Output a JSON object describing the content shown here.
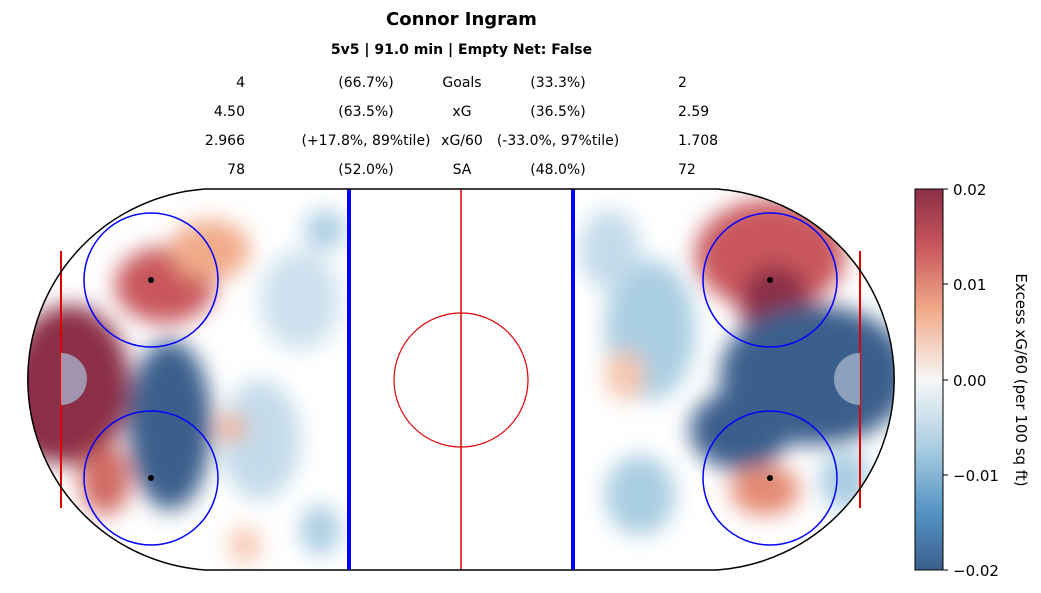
{
  "title": "Connor Ingram",
  "subtitle": "5v5 | 91.0 min | Empty Net: False",
  "stats": [
    {
      "left": "4",
      "left_pct": "(66.7%)",
      "label": "Goals",
      "right_pct": "(33.3%)",
      "right": "2"
    },
    {
      "left": "4.50",
      "left_pct": "(63.5%)",
      "label": "xG",
      "right_pct": "(36.5%)",
      "right": "2.59"
    },
    {
      "left": "2.966",
      "left_pct": "(+17.8%, 89%tile)",
      "label": "xG/60",
      "right_pct": "(-33.0%, 97%tile)",
      "right": "1.708"
    },
    {
      "left": "78",
      "left_pct": "(52.0%)",
      "label": "SA",
      "right_pct": "(48.0%)",
      "right": "72"
    }
  ],
  "colorbar": {
    "label": "Excess xG/60 (per 100 sq ft)",
    "ticks": [
      "0.02",
      "0.01",
      "0.00",
      "−0.01",
      "−0.02"
    ]
  },
  "colors": {
    "high": "#8b2f47",
    "low": "#3a5f8c",
    "zero": "#f7f7f7",
    "red_line": "#e00000",
    "blue_line": "#0000ff"
  },
  "chart_data": {
    "type": "heatmap",
    "title": "Connor Ingram",
    "subtitle": "5v5 | 91.0 min | Empty Net: False",
    "value_range": [
      -0.02,
      0.02
    ],
    "colorbar_label": "Excess xG/60 (per 100 sq ft)",
    "regions": [
      {
        "zone": "left",
        "area": "crease and net front",
        "value": 0.02
      },
      {
        "zone": "left",
        "area": "top faceoff circle",
        "value": 0.015
      },
      {
        "zone": "left",
        "area": "bottom faceoff circle / slot",
        "value": -0.02
      },
      {
        "zone": "left",
        "area": "bottom-left corner",
        "value": 0.012
      },
      {
        "zone": "left",
        "area": "neutral-side middle",
        "value": -0.006
      },
      {
        "zone": "right",
        "area": "top faceoff circle",
        "value": 0.02
      },
      {
        "zone": "right",
        "area": "slot and crease",
        "value": -0.02
      },
      {
        "zone": "right",
        "area": "bottom faceoff circle",
        "value": 0.01
      },
      {
        "zone": "right",
        "area": "near blue line",
        "value": -0.008
      }
    ]
  }
}
